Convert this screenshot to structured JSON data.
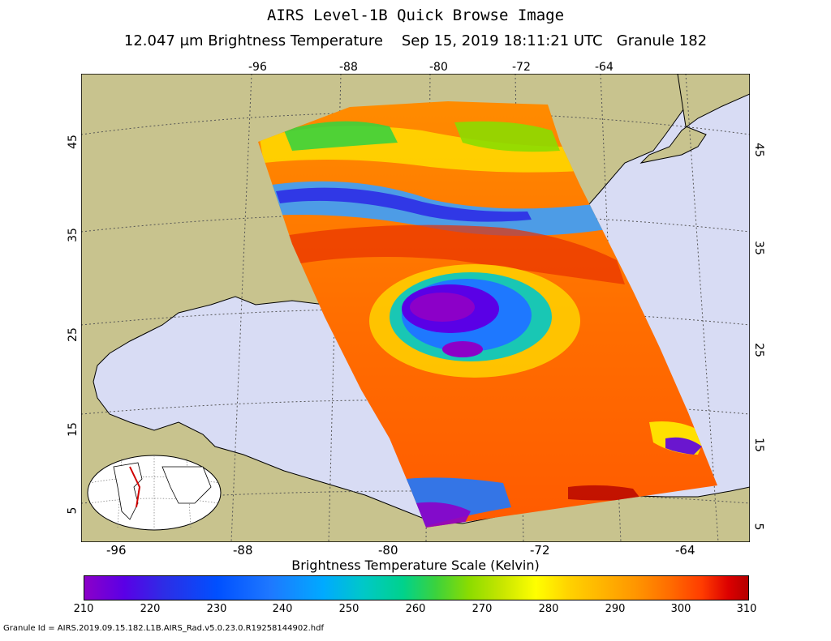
{
  "title": "AIRS Level-1B Quick Browse Image",
  "subtitle": {
    "measure": "12.047 μm Brightness Temperature",
    "date": "Sep 15, 2019 18:11:21 UTC",
    "granule": "Granule 182"
  },
  "map": {
    "top_longitudes": [
      "-96",
      "-88",
      "-80",
      "-72",
      "-64"
    ],
    "bottom_longitudes": [
      "-96",
      "-88",
      "-80",
      "-72",
      "-64"
    ],
    "left_latitudes": [
      "45",
      "35",
      "25",
      "15",
      "5"
    ],
    "right_latitudes": [
      "45",
      "35",
      "25",
      "15",
      "5"
    ],
    "colors": {
      "land": "#c8c38e",
      "ocean": "#d8dcf4",
      "border": "#000000"
    }
  },
  "scale": {
    "title": "Brightness Temperature Scale (Kelvin)",
    "ticks": [
      "210",
      "220",
      "230",
      "240",
      "250",
      "260",
      "270",
      "280",
      "290",
      "300",
      "310"
    ]
  },
  "footer": "Granule Id = AIRS.2019.09.15.182.L1B.AIRS_Rad.v5.0.23.0.R19258144902.hdf"
}
